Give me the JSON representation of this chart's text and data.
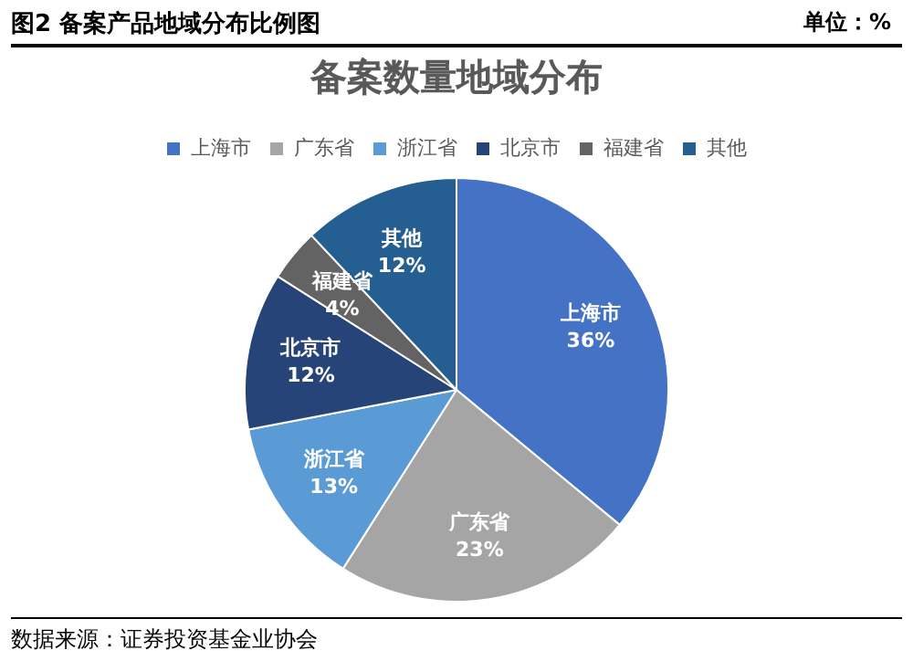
{
  "chart_data": {
    "type": "pie",
    "subtitle": "图2 备案产品地域分布比例图",
    "title": "备案数量地域分布",
    "annotations": [
      "单位：%",
      "数据来源：证券投资基金业协会"
    ],
    "categories": [
      "上海市",
      "广东省",
      "浙江省",
      "北京市",
      "福建省",
      "其他"
    ],
    "values": [
      36,
      23,
      13,
      12,
      4,
      12
    ],
    "value_labels": [
      "36%",
      "23%",
      "13%",
      "12%",
      "4%",
      "12%"
    ],
    "colors": [
      "#4472c4",
      "#a5a5a5",
      "#5b9bd5",
      "#264478",
      "#636363",
      "#255e91"
    ],
    "legend": "top"
  }
}
